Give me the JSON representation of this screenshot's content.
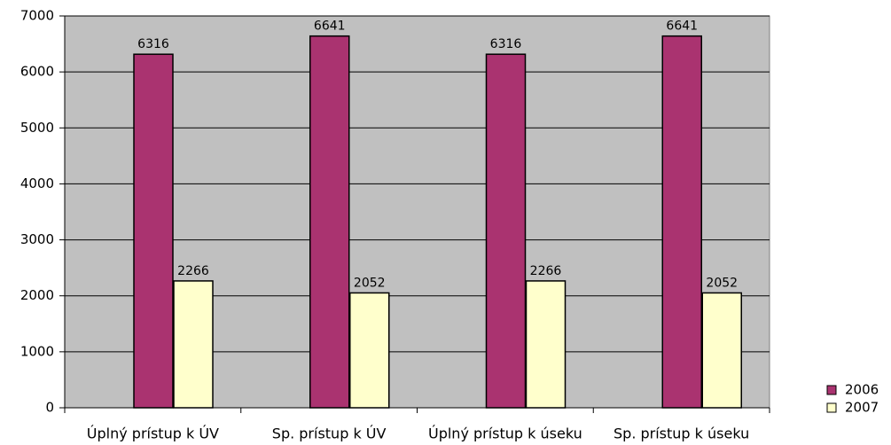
{
  "chart_data": {
    "type": "bar",
    "categories": [
      "Úplný prístup k ÚV",
      "Sp. prístup k ÚV",
      "Úplný prístup k úseku",
      "Sp. prístup k úseku"
    ],
    "series": [
      {
        "name": "2006",
        "color": "#aa3370",
        "values": [
          6316,
          6641,
          6316,
          6641
        ]
      },
      {
        "name": "2007",
        "color": "#ffffcc",
        "values": [
          2266,
          2052,
          2266,
          2052
        ]
      }
    ],
    "ylim": [
      0,
      7000
    ],
    "yticks": [
      0,
      1000,
      2000,
      3000,
      4000,
      5000,
      6000,
      7000
    ],
    "grid": true,
    "legend": "right"
  }
}
